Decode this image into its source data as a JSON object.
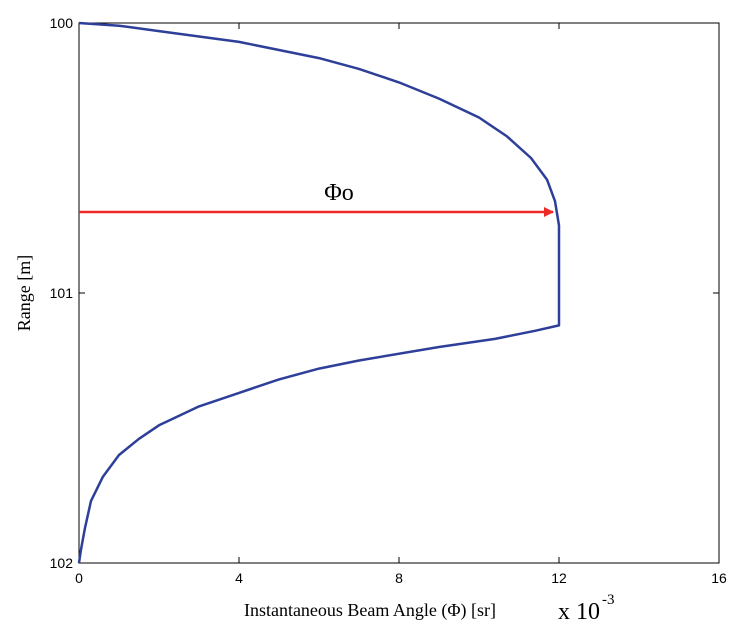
{
  "chart_data": {
    "type": "line",
    "title": "",
    "xlabel": "Instantaneous Beam Angle (Φ) [sr]",
    "ylabel": "Range  [m]",
    "x_scale_factor": {
      "base": "x 10",
      "exponent": "-3"
    },
    "xlim": [
      0,
      16
    ],
    "ylim": [
      100,
      102
    ],
    "y_inverted": true,
    "x_ticks": [
      0,
      4,
      8,
      12,
      16
    ],
    "x_tick_labels": [
      "0",
      "4",
      "8",
      "12",
      "16"
    ],
    "y_ticks": [
      100,
      101,
      102
    ],
    "y_tick_labels": [
      "100",
      "101",
      "102"
    ],
    "grid": false,
    "series": [
      {
        "color": "#2e3f99",
        "points": [
          [
            0,
            100.0
          ],
          [
            1.0,
            100.01
          ],
          [
            2.0,
            100.03
          ],
          [
            3.0,
            100.05
          ],
          [
            4.0,
            100.07
          ],
          [
            5.0,
            100.1
          ],
          [
            6.0,
            100.13
          ],
          [
            7.0,
            100.17
          ],
          [
            8.0,
            100.22
          ],
          [
            9.0,
            100.28
          ],
          [
            10.0,
            100.35
          ],
          [
            10.7,
            100.42
          ],
          [
            11.3,
            100.5
          ],
          [
            11.7,
            100.58
          ],
          [
            11.9,
            100.66
          ],
          [
            12.0,
            100.75
          ],
          [
            12.0,
            101.12
          ],
          [
            11.4,
            101.14
          ],
          [
            10.4,
            101.17
          ],
          [
            9.0,
            101.2
          ],
          [
            7.0,
            101.25
          ],
          [
            6.0,
            101.28
          ],
          [
            5.0,
            101.32
          ],
          [
            4.0,
            101.37
          ],
          [
            3.0,
            101.42
          ],
          [
            2.0,
            101.49
          ],
          [
            1.5,
            101.54
          ],
          [
            1.0,
            101.6
          ],
          [
            0.6,
            101.68
          ],
          [
            0.3,
            101.77
          ],
          [
            0.15,
            101.87
          ],
          [
            0.05,
            101.95
          ],
          [
            0,
            102.0
          ]
        ]
      }
    ],
    "annotations": [
      {
        "text": "Φo",
        "arrow_from": [
          0,
          100.7
        ],
        "arrow_to": [
          12,
          100.7
        ],
        "arrow_color": "#ee2a24"
      }
    ]
  }
}
